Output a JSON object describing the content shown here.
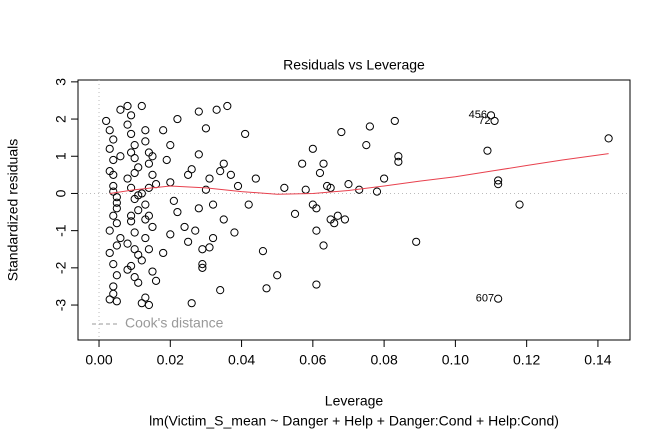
{
  "chart_data": {
    "type": "scatter",
    "title": "Residuals vs Leverage",
    "x_label": "Leverage",
    "y_label": "Standardized residuals",
    "subtitle": "lm(Victim_S_mean ~ Danger + Help + Danger:Cond + Help:Cond)",
    "xlim": [
      -0.0059,
      0.149
    ],
    "ylim": [
      -3.94,
      3.05
    ],
    "xticks": [
      {
        "value": 0,
        "label": "0.00"
      },
      {
        "value": 0.02,
        "label": "0.02"
      },
      {
        "value": 0.04,
        "label": "0.04"
      },
      {
        "value": 0.06,
        "label": "0.06"
      },
      {
        "value": 0.08,
        "label": "0.08"
      },
      {
        "value": 0.1,
        "label": "0.10"
      },
      {
        "value": 0.12,
        "label": "0.12"
      },
      {
        "value": 0.14,
        "label": "0.14"
      }
    ],
    "yticks": [
      -3,
      -2,
      -1,
      0,
      1,
      2,
      3
    ],
    "grid": false,
    "color": "#000000",
    "x": [
      0.002,
      0.003,
      0.003,
      0.004,
      0.004,
      0.004,
      0.005,
      0.005,
      0.005,
      0.006,
      0.003,
      0.004,
      0.005,
      0.004,
      0.003,
      0.005,
      0.004,
      0.006,
      0.003,
      0.004,
      0.005,
      0.004,
      0.003,
      0.005,
      0.004,
      0.006,
      0.008,
      0.009,
      0.009,
      0.01,
      0.01,
      0.011,
      0.008,
      0.009,
      0.01,
      0.011,
      0.009,
      0.01,
      0.008,
      0.011,
      0.009,
      0.01,
      0.011,
      0.008,
      0.009,
      0.01,
      0.011,
      0.009,
      0.01,
      0.008,
      0.012,
      0.013,
      0.013,
      0.014,
      0.014,
      0.015,
      0.016,
      0.012,
      0.013,
      0.014,
      0.015,
      0.013,
      0.014,
      0.012,
      0.015,
      0.016,
      0.013,
      0.014,
      0.012,
      0.015,
      0.014,
      0.013,
      0.018,
      0.019,
      0.02,
      0.021,
      0.022,
      0.024,
      0.025,
      0.026,
      0.028,
      0.028,
      0.029,
      0.03,
      0.031,
      0.032,
      0.033,
      0.034,
      0.035,
      0.036,
      0.038,
      0.039,
      0.018,
      0.02,
      0.022,
      0.025,
      0.027,
      0.028,
      0.029,
      0.03,
      0.032,
      0.034,
      0.035,
      0.037,
      0.026,
      0.031,
      0.029,
      0.02,
      0.041,
      0.042,
      0.044,
      0.046,
      0.047,
      0.05,
      0.052,
      0.055,
      0.057,
      0.058,
      0.06,
      0.061,
      0.061,
      0.062,
      0.063,
      0.064,
      0.065,
      0.066,
      0.067,
      0.068,
      0.069,
      0.07,
      0.073,
      0.075,
      0.076,
      0.078,
      0.08,
      0.083,
      0.084,
      0.084,
      0.089,
      0.109,
      0.11,
      0.111,
      0.112,
      0.112,
      0.112,
      0.118,
      0.143,
      0.06,
      0.063,
      0.065,
      0.061
    ],
    "values": [
      1.95,
      1.7,
      1.2,
      0.9,
      0.5,
      0.2,
      -0.1,
      -0.4,
      -0.8,
      -1.2,
      -1.6,
      -1.9,
      -2.2,
      -2.5,
      -2.85,
      -2.9,
      1.45,
      1.0,
      0.6,
      0.05,
      -0.25,
      -0.6,
      -1.0,
      -1.4,
      -2.7,
      2.25,
      2.35,
      2.1,
      1.6,
      1.3,
      0.95,
      0.7,
      0.4,
      0.15,
      -0.15,
      -0.45,
      -0.75,
      -1.05,
      -1.35,
      -1.65,
      -1.95,
      -2.25,
      -2.4,
      1.85,
      1.1,
      0.55,
      -0.05,
      -0.6,
      -1.5,
      -2.05,
      2.35,
      1.7,
      1.4,
      1.1,
      0.8,
      0.5,
      0.25,
      0,
      -0.3,
      -0.6,
      -0.9,
      -1.2,
      -1.5,
      -1.8,
      -2.1,
      -2.35,
      -2.8,
      -3.0,
      -2.95,
      1.0,
      0.15,
      -0.7,
      1.7,
      0.9,
      1.3,
      -0.2,
      2.0,
      -0.9,
      0.5,
      -2.95,
      2.2,
      1.05,
      -1.9,
      1.75,
      0.4,
      -1.2,
      2.25,
      -2.6,
      0.8,
      2.35,
      -1.05,
      0.2,
      -1.6,
      0.3,
      -0.5,
      -1.3,
      -1.0,
      -0.4,
      -1.5,
      0.1,
      -0.3,
      0.6,
      -0.7,
      0.5,
      0.65,
      -1.45,
      -2.0,
      -1.1,
      1.6,
      -0.3,
      0.4,
      -1.55,
      -2.55,
      -2.2,
      0.15,
      -0.55,
      0.8,
      0.1,
      1.2,
      -0.4,
      -2.45,
      0.55,
      -1.4,
      0.2,
      -0.7,
      -0.8,
      -0.6,
      1.65,
      -0.7,
      0.25,
      0.1,
      1.3,
      1.8,
      0.05,
      0.4,
      1.95,
      0.85,
      1.0,
      -1.3,
      1.15,
      2.1,
      1.95,
      -2.83,
      0.25,
      0.35,
      -0.3,
      1.48,
      -0.3,
      0.8,
      0.15,
      -1.0
    ],
    "smooth": {
      "color": "#e8414e",
      "x": [
        0.003,
        0.01,
        0.02,
        0.03,
        0.04,
        0.05,
        0.06,
        0.07,
        0.08,
        0.09,
        0.1,
        0.11,
        0.12,
        0.13,
        0.143
      ],
      "values": [
        0.0,
        0.1,
        0.2,
        0.15,
        0.05,
        -0.02,
        0.0,
        0.08,
        0.2,
        0.33,
        0.45,
        0.6,
        0.75,
        0.9,
        1.07
      ]
    },
    "reference_lines": {
      "x": 0,
      "y": 0,
      "color": "#bbbbbb"
    },
    "annotations": [
      {
        "text": "456",
        "x": 0.11,
        "y": 2.1
      },
      {
        "text": "72",
        "x": 0.111,
        "y": 1.95
      },
      {
        "text": "607",
        "x": 0.112,
        "y": -2.83
      }
    ],
    "legend": {
      "label": "Cook's distance",
      "position": "bottom-left",
      "color": "#999999"
    }
  }
}
